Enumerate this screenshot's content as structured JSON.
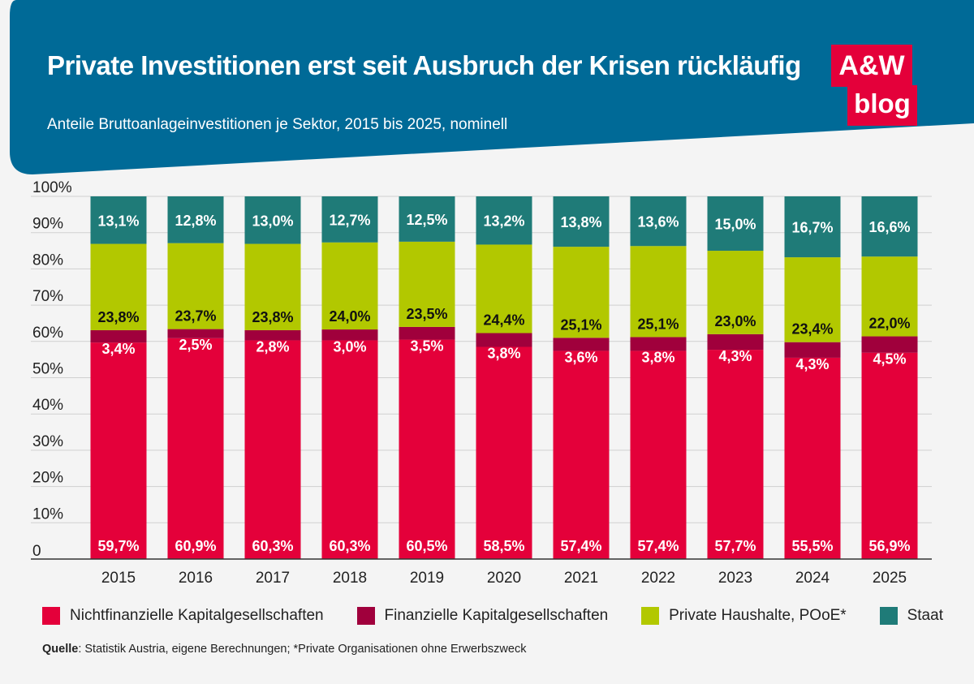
{
  "header": {
    "title": "Private Investitionen erst seit Ausbruch der Krisen rückläufig",
    "subtitle": "Anteile Bruttoanlageinvestitionen je Sektor, 2015 bis 2025, nominell",
    "logo_line1": "A&W",
    "logo_line2": "blog"
  },
  "colors": {
    "header_band": "#006a97",
    "nichtfinanzielle": "#e4003a",
    "finanzielle": "#a0003c",
    "haushalte": "#b2c800",
    "staat": "#1f7b78"
  },
  "chart_data": {
    "type": "bar",
    "stacked": true,
    "categories": [
      "2015",
      "2016",
      "2017",
      "2018",
      "2019",
      "2020",
      "2021",
      "2022",
      "2023",
      "2024",
      "2025"
    ],
    "y_ticks": [
      "0",
      "10%",
      "20%",
      "30%",
      "40%",
      "50%",
      "60%",
      "70%",
      "80%",
      "90%",
      "100%"
    ],
    "ylim": [
      0,
      100
    ],
    "grid": true,
    "legend_position": "bottom",
    "series": [
      {
        "name": "Nichtfinanzielle Kapitalgesellschaften",
        "values": [
          59.7,
          60.9,
          60.3,
          60.3,
          60.5,
          58.5,
          57.4,
          57.4,
          57.7,
          55.5,
          56.9
        ],
        "labels": [
          "59,7%",
          "60,9%",
          "60,3%",
          "60,3%",
          "60,5%",
          "58,5%",
          "57,4%",
          "57,4%",
          "57,7%",
          "55,5%",
          "56,9%"
        ]
      },
      {
        "name": "Finanzielle Kapitalgesellschaften",
        "values": [
          3.4,
          2.5,
          2.8,
          3.0,
          3.5,
          3.8,
          3.6,
          3.8,
          4.3,
          4.3,
          4.5
        ],
        "labels": [
          "3,4%",
          "2,5%",
          "2,8%",
          "3,0%",
          "3,5%",
          "3,8%",
          "3,6%",
          "3,8%",
          "4,3%",
          "4,3%",
          "4,5%"
        ]
      },
      {
        "name": "Private Haushalte, POoE*",
        "values": [
          23.8,
          23.7,
          23.8,
          24.0,
          23.5,
          24.4,
          25.1,
          25.1,
          23.0,
          23.4,
          22.0
        ],
        "labels": [
          "23,8%",
          "23,7%",
          "23,8%",
          "24,0%",
          "23,5%",
          "24,4%",
          "25,1%",
          "25,1%",
          "23,0%",
          "23,4%",
          "22,0%"
        ]
      },
      {
        "name": "Staat",
        "values": [
          13.1,
          12.8,
          13.0,
          12.7,
          12.5,
          13.2,
          13.8,
          13.6,
          15.0,
          16.7,
          16.6
        ],
        "labels": [
          "13,1%",
          "12,8%",
          "13,0%",
          "12,7%",
          "12,5%",
          "13,2%",
          "13,8%",
          "13,6%",
          "15,0%",
          "16,7%",
          "16,6%"
        ]
      }
    ]
  },
  "source": {
    "label": "Quelle",
    "text": ": Statistik Austria, eigene Berechnungen; *Private Organisationen ohne Erwerbszweck"
  }
}
